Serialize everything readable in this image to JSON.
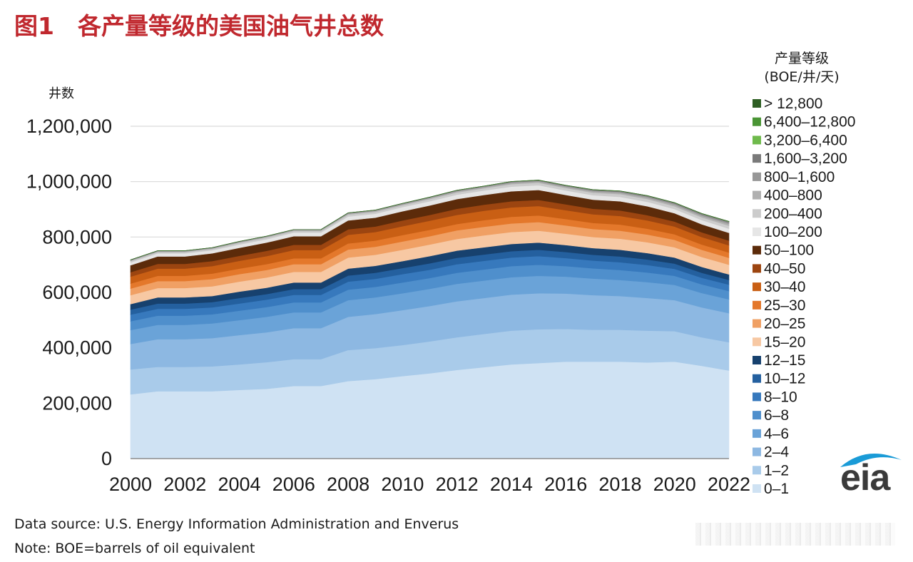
{
  "title": "图1　各产量等级的美国油气井总数",
  "footer": {
    "source": "Data source: U.S. Energy Information Administration and Enverus",
    "note": "Note: BOE=barrels of oil equivalent"
  },
  "logo_text": "eia",
  "chart_data": {
    "type": "area",
    "stacked": true,
    "ylabel": "井数",
    "legend_title": [
      "产量等级",
      "(BOE/井/天)"
    ],
    "legend_position": "right",
    "grid": "horizontal",
    "ylim": [
      0,
      1200000
    ],
    "y_ticks": [
      0,
      200000,
      400000,
      600000,
      800000,
      1000000,
      1200000
    ],
    "y_tick_labels": [
      "0",
      "200,000",
      "400,000",
      "600,000",
      "800,000",
      "1,000,000",
      "1,200,000"
    ],
    "x": [
      2000,
      2001,
      2002,
      2003,
      2004,
      2005,
      2006,
      2007,
      2008,
      2009,
      2010,
      2011,
      2012,
      2013,
      2014,
      2015,
      2016,
      2017,
      2018,
      2019,
      2020,
      2021,
      2022
    ],
    "x_tick_labels": [
      "2000",
      "2002",
      "2004",
      "2006",
      "2008",
      "2010",
      "2012",
      "2014",
      "2016",
      "2018",
      "2020",
      "2022"
    ],
    "series": [
      {
        "name": "0–1",
        "color": "#cfe2f3",
        "values": [
          232000,
          243000,
          243000,
          243000,
          248000,
          252000,
          262000,
          262000,
          280000,
          287000,
          298000,
          308000,
          320000,
          330000,
          340000,
          345000,
          350000,
          350000,
          350000,
          347000,
          350000,
          335000,
          318000
        ]
      },
      {
        "name": "1–2",
        "color": "#a9cbea",
        "values": [
          90000,
          88000,
          88000,
          90000,
          92000,
          96000,
          97000,
          97000,
          112000,
          112000,
          112000,
          115000,
          118000,
          120000,
          122000,
          122000,
          118000,
          115000,
          115000,
          115000,
          110000,
          103000,
          102000
        ]
      },
      {
        "name": "2–4",
        "color": "#8db8e2",
        "values": [
          92000,
          100000,
          100000,
          102000,
          106000,
          108000,
          112000,
          112000,
          120000,
          123000,
          126000,
          128000,
          130000,
          130000,
          130000,
          130000,
          128000,
          125000,
          122000,
          118000,
          112000,
          108000,
          105000
        ]
      },
      {
        "name": "4–6",
        "color": "#6aa3d8",
        "values": [
          50000,
          52000,
          52000,
          53000,
          54000,
          56000,
          57000,
          57000,
          60000,
          60000,
          61000,
          62000,
          63000,
          63000,
          63000,
          63000,
          61000,
          60000,
          58000,
          57000,
          55000,
          52000,
          50000
        ]
      },
      {
        "name": "6–8",
        "color": "#4f8fcc",
        "values": [
          32000,
          33000,
          33000,
          33000,
          34000,
          35000,
          36000,
          36000,
          38000,
          38000,
          39000,
          39000,
          40000,
          40000,
          40000,
          40000,
          38000,
          37000,
          36000,
          35000,
          33000,
          31000,
          30000
        ]
      },
      {
        "name": "8–10",
        "color": "#3779bd",
        "values": [
          24000,
          25000,
          25000,
          25000,
          26000,
          27000,
          27000,
          27000,
          29000,
          29000,
          30000,
          30000,
          31000,
          31000,
          31000,
          31000,
          29000,
          28000,
          28000,
          27000,
          25000,
          24000,
          23000
        ]
      },
      {
        "name": "10–12",
        "color": "#24609f",
        "values": [
          18000,
          19000,
          19000,
          19000,
          20000,
          20000,
          21000,
          21000,
          22000,
          22000,
          22000,
          23000,
          23000,
          23000,
          23000,
          23000,
          22000,
          21000,
          21000,
          20000,
          19000,
          18000,
          17000
        ]
      },
      {
        "name": "12–15",
        "color": "#17416e",
        "values": [
          20000,
          22000,
          22000,
          22000,
          23000,
          23000,
          24000,
          24000,
          25000,
          25000,
          25000,
          26000,
          26000,
          26000,
          26000,
          26000,
          25000,
          24000,
          24000,
          23000,
          22000,
          21000,
          20000
        ]
      },
      {
        "name": "15–20",
        "color": "#f7c8a3",
        "values": [
          32000,
          34000,
          34000,
          35000,
          36000,
          37000,
          38000,
          38000,
          40000,
          40000,
          41000,
          42000,
          42000,
          43000,
          43000,
          43000,
          41000,
          40000,
          40000,
          39000,
          37000,
          36000,
          35000
        ]
      },
      {
        "name": "20–25",
        "color": "#f0a064",
        "values": [
          24000,
          25000,
          25000,
          26000,
          27000,
          27000,
          28000,
          28000,
          29000,
          29000,
          30000,
          30000,
          31000,
          31000,
          31000,
          31000,
          30000,
          29000,
          29000,
          28000,
          27000,
          26000,
          25000
        ]
      },
      {
        "name": "25–30",
        "color": "#e4782b",
        "values": [
          18000,
          19000,
          19000,
          20000,
          20000,
          21000,
          21000,
          21000,
          22000,
          22000,
          23000,
          23000,
          23000,
          24000,
          24000,
          24000,
          23000,
          22000,
          22000,
          21000,
          20000,
          19000,
          19000
        ]
      },
      {
        "name": "30–40",
        "color": "#c95f14",
        "values": [
          25000,
          26000,
          26000,
          27000,
          28000,
          29000,
          30000,
          30000,
          31000,
          31000,
          32000,
          33000,
          33000,
          34000,
          34000,
          34000,
          32000,
          31000,
          31000,
          30000,
          28000,
          27000,
          26000
        ]
      },
      {
        "name": "40–50",
        "color": "#9c4510",
        "values": [
          16000,
          17000,
          17000,
          18000,
          18000,
          19000,
          19000,
          19000,
          20000,
          20000,
          21000,
          21000,
          22000,
          22000,
          22000,
          22000,
          21000,
          20000,
          20000,
          19000,
          18000,
          17000,
          17000
        ]
      },
      {
        "name": "50–100",
        "color": "#5c2b0a",
        "values": [
          25000,
          27000,
          27000,
          28000,
          29000,
          30000,
          31000,
          31000,
          32000,
          32000,
          33000,
          34000,
          35000,
          35000,
          36000,
          36000,
          34000,
          33000,
          33000,
          32000,
          30000,
          29000,
          28000
        ]
      },
      {
        "name": "100–200",
        "color": "#e6e6e6",
        "values": [
          10000,
          11000,
          11000,
          11000,
          12000,
          12000,
          13000,
          13000,
          14000,
          14000,
          15000,
          15000,
          16000,
          16000,
          17000,
          17000,
          16000,
          16000,
          16000,
          16000,
          15000,
          15000,
          15000
        ]
      },
      {
        "name": "200–400",
        "color": "#cccccc",
        "values": [
          5000,
          5000,
          5000,
          5000,
          6000,
          6000,
          6000,
          6000,
          7000,
          7000,
          7000,
          8000,
          8000,
          8000,
          9000,
          9000,
          9000,
          9000,
          10000,
          10000,
          10000,
          10000,
          11000
        ]
      },
      {
        "name": "400–800",
        "color": "#b0b0b0",
        "values": [
          2500,
          2500,
          2500,
          2500,
          3000,
          3000,
          3000,
          3000,
          3500,
          3500,
          3500,
          4000,
          4000,
          4000,
          4500,
          4500,
          4500,
          5000,
          5000,
          5500,
          6000,
          6000,
          6500
        ]
      },
      {
        "name": "800–1,600",
        "color": "#979797",
        "values": [
          1500,
          1500,
          1500,
          1500,
          1500,
          1500,
          1500,
          1500,
          2000,
          2000,
          2000,
          2000,
          2500,
          2500,
          3000,
          3000,
          3000,
          3500,
          3500,
          4000,
          4000,
          4500,
          5000
        ]
      },
      {
        "name": "1,600–3,200",
        "color": "#7a7a7a",
        "values": [
          600,
          600,
          600,
          600,
          600,
          600,
          600,
          600,
          800,
          800,
          900,
          1000,
          1200,
          1400,
          1600,
          1700,
          1800,
          2000,
          2200,
          2400,
          2500,
          2700,
          3000
        ]
      },
      {
        "name": "3,200–6,400",
        "color": "#6fba4c",
        "values": [
          100,
          100,
          100,
          100,
          100,
          100,
          100,
          100,
          150,
          150,
          200,
          250,
          300,
          350,
          400,
          450,
          500,
          550,
          600,
          650,
          700,
          750,
          800
        ]
      },
      {
        "name": "6,400–12,800",
        "color": "#4a9535",
        "values": [
          30,
          30,
          30,
          30,
          30,
          30,
          30,
          30,
          40,
          40,
          50,
          60,
          70,
          80,
          100,
          110,
          120,
          130,
          140,
          150,
          160,
          170,
          180
        ]
      },
      {
        "name": "> 12,800",
        "color": "#2e5e23",
        "values": [
          10,
          10,
          10,
          10,
          10,
          10,
          10,
          10,
          10,
          10,
          15,
          15,
          20,
          20,
          25,
          25,
          30,
          30,
          35,
          35,
          40,
          40,
          45
        ]
      }
    ]
  }
}
